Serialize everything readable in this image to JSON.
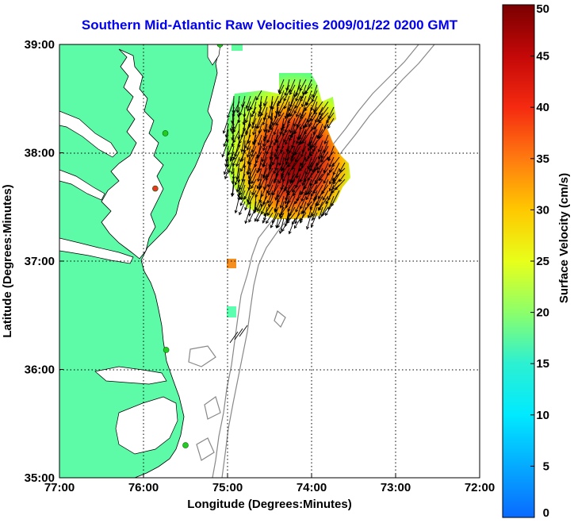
{
  "title": "Southern Mid-Atlantic Raw Velocities 2009/01/22 0200 GMT",
  "map": {
    "xlabel": "Longitude (Degrees:Minutes)",
    "ylabel": "Latitude (Degrees:Minutes)",
    "lon_range": [
      -77,
      -72
    ],
    "lat_range": [
      35,
      39
    ],
    "x_ticks": [
      {
        "value": -77,
        "label": "77:00"
      },
      {
        "value": -76,
        "label": "76:00"
      },
      {
        "value": -75,
        "label": "75:00"
      },
      {
        "value": -74,
        "label": "74:00"
      },
      {
        "value": -73,
        "label": "73:00"
      },
      {
        "value": -72,
        "label": "72:00"
      }
    ],
    "y_ticks": [
      {
        "value": 35,
        "label": "35:00"
      },
      {
        "value": 36,
        "label": "36:00"
      },
      {
        "value": 37,
        "label": "37:00"
      },
      {
        "value": 38,
        "label": "38:00"
      },
      {
        "value": 39,
        "label": "39:00"
      }
    ],
    "grid": "dotted",
    "land_color": "#5dfaa8",
    "stations": [
      {
        "lon": -75.09,
        "lat": 39.0,
        "color": "#22cc22"
      },
      {
        "lon": -75.74,
        "lat": 38.18,
        "color": "#22cc22"
      },
      {
        "lon": -75.86,
        "lat": 37.67,
        "color": "#ee3322"
      },
      {
        "lon": -75.73,
        "lat": 36.18,
        "color": "#22cc22"
      },
      {
        "lon": -75.5,
        "lat": 35.3,
        "color": "#22cc22"
      }
    ]
  },
  "colorbar": {
    "label": "Surface Velocity (cm/s)",
    "min": 0,
    "max": 50,
    "ticks": [
      {
        "value": 0,
        "label": "0"
      },
      {
        "value": 5,
        "label": "5"
      },
      {
        "value": 10,
        "label": "10"
      },
      {
        "value": 15,
        "label": "15"
      },
      {
        "value": 20,
        "label": "20"
      },
      {
        "value": 25,
        "label": "25"
      },
      {
        "value": 30,
        "label": "30"
      },
      {
        "value": 35,
        "label": "35"
      },
      {
        "value": 40,
        "label": "40"
      },
      {
        "value": 45,
        "label": "45"
      },
      {
        "value": 50,
        "label": "50"
      }
    ]
  }
}
